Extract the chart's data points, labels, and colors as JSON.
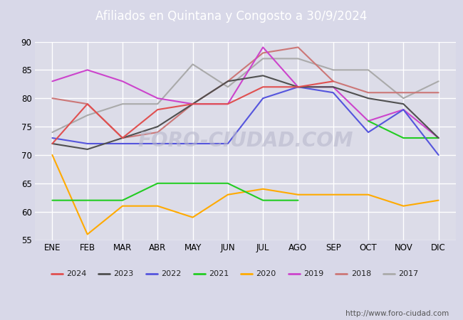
{
  "title": "Afiliados en Quintana y Congosto a 30/9/2024",
  "title_color": "#ffffff",
  "title_bg_color": "#4d7abf",
  "url": "http://www.foro-ciudad.com",
  "months": [
    "ENE",
    "FEB",
    "MAR",
    "ABR",
    "MAY",
    "JUN",
    "JUL",
    "AGO",
    "SEP",
    "OCT",
    "NOV",
    "DIC"
  ],
  "ylim": [
    55,
    90
  ],
  "yticks": [
    55,
    60,
    65,
    70,
    75,
    80,
    85,
    90
  ],
  "bg_color": "#d8d8e8",
  "plot_bg_color": "#dcdce8",
  "grid_color": "#ffffff",
  "watermark_color": "#b8b8cc",
  "series": {
    "2024": {
      "color": "#e05050",
      "data": [
        72,
        79,
        73,
        78,
        79,
        79,
        82,
        82,
        83,
        null,
        null,
        null
      ]
    },
    "2023": {
      "color": "#505050",
      "data": [
        72,
        71,
        73,
        75,
        79,
        83,
        84,
        82,
        82,
        80,
        79,
        73
      ]
    },
    "2022": {
      "color": "#5555dd",
      "data": [
        73,
        72,
        72,
        72,
        72,
        72,
        80,
        82,
        81,
        74,
        78,
        70
      ]
    },
    "2021": {
      "color": "#22cc22",
      "data": [
        62,
        62,
        62,
        65,
        65,
        65,
        62,
        62,
        null,
        76,
        73,
        73
      ]
    },
    "2020": {
      "color": "#ffaa00",
      "data": [
        70,
        56,
        61,
        61,
        59,
        63,
        64,
        63,
        63,
        63,
        61,
        62
      ]
    },
    "2019": {
      "color": "#cc44cc",
      "data": [
        83,
        85,
        83,
        80,
        79,
        79,
        89,
        82,
        82,
        76,
        78,
        73
      ]
    },
    "2018": {
      "color": "#cc7777",
      "data": [
        80,
        79,
        73,
        74,
        79,
        83,
        88,
        89,
        83,
        81,
        81,
        81
      ]
    },
    "2017": {
      "color": "#aaaaaa",
      "data": [
        74,
        77,
        79,
        79,
        86,
        82,
        87,
        87,
        85,
        85,
        80,
        83
      ]
    }
  },
  "legend_years": [
    "2024",
    "2023",
    "2022",
    "2021",
    "2020",
    "2019",
    "2018",
    "2017"
  ],
  "legend_bg": "#f0f0f0",
  "legend_edge": "#999999"
}
